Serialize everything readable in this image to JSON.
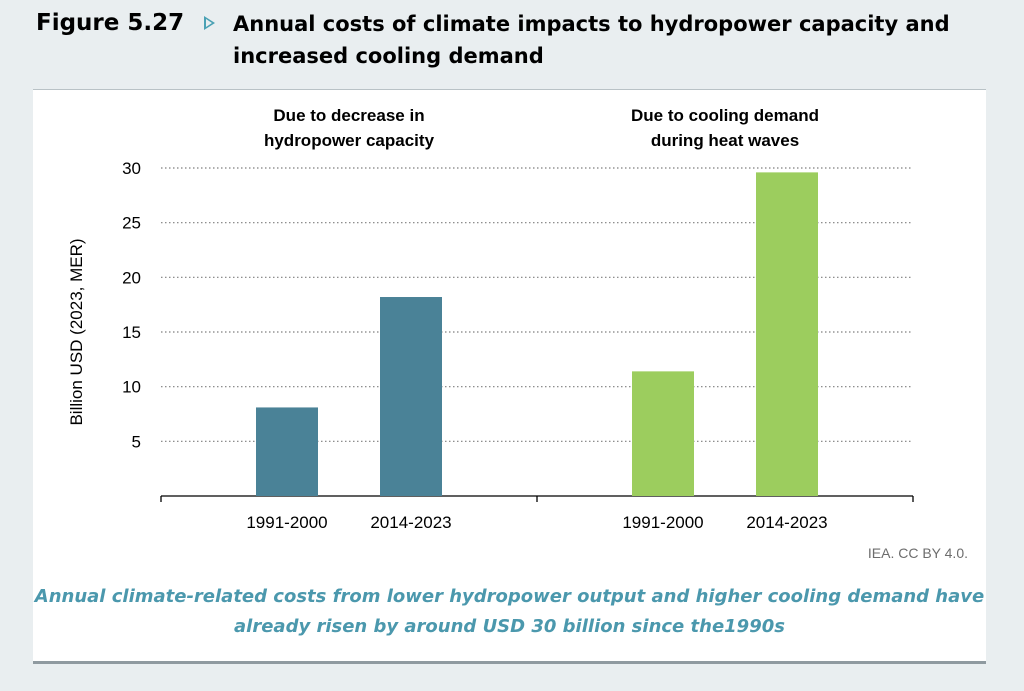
{
  "figure": {
    "label": "Figure 5.27",
    "arrow_icon": "triangle-right-outline-icon",
    "title": "Annual costs of climate impacts to hydropower capacity and increased cooling demand"
  },
  "source": "IEA. CC BY 4.0.",
  "caption": "Annual climate-related costs from lower hydropower output and higher cooling demand have already risen by around USD 30 billion since the1990s",
  "chart_data": {
    "type": "bar",
    "ylabel": "Billion USD (2023, MER)",
    "ylim": [
      0,
      30
    ],
    "yticks": [
      5,
      10,
      15,
      20,
      25,
      30
    ],
    "grid": true,
    "groups": [
      {
        "title": "Due to decrease in hydropower capacity",
        "title_lines": [
          "Due to decrease in",
          "hydropower capacity"
        ],
        "color": "#4a8297",
        "categories": [
          "1991-2000",
          "2014-2023"
        ],
        "values": [
          8.1,
          18.2
        ]
      },
      {
        "title": "Due to cooling demand during heat waves",
        "title_lines": [
          "Due to cooling demand",
          "during heat waves"
        ],
        "color": "#9ccd5e",
        "categories": [
          "1991-2000",
          "2014-2023"
        ],
        "values": [
          11.4,
          29.6
        ]
      }
    ]
  }
}
